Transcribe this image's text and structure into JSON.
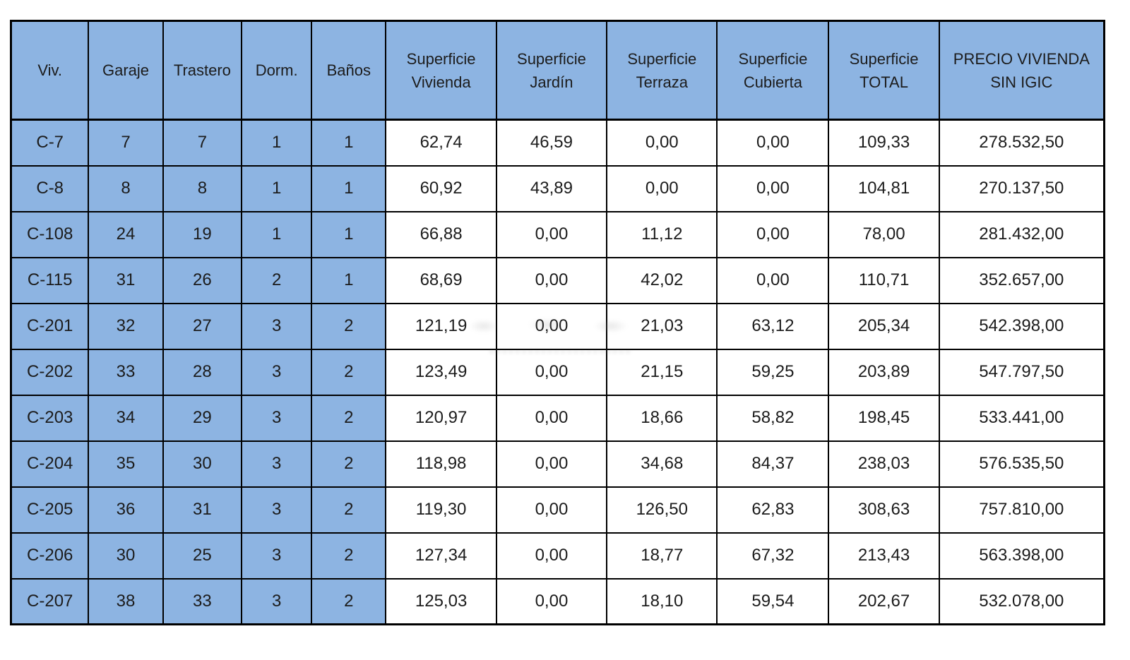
{
  "chart_data": {
    "type": "table",
    "title": "",
    "columns": [
      "Viv.",
      "Garaje",
      "Trastero",
      "Dorm.",
      "Baños",
      "Superficie Vivienda",
      "Superficie Jardín",
      "Superficie Terraza",
      "Superficie Cubierta",
      "Superficie TOTAL",
      "PRECIO VIVIENDA SIN IGIC"
    ],
    "column_widths_pct": [
      7.1,
      6.8,
      7.2,
      6.4,
      6.8,
      10.1,
      10.1,
      10.1,
      10.2,
      10.1,
      15.1
    ],
    "blue_label_columns": 5,
    "rows": [
      [
        "C-7",
        "7",
        "7",
        "1",
        "1",
        "62,74",
        "46,59",
        "0,00",
        "0,00",
        "109,33",
        "278.532,50"
      ],
      [
        "C-8",
        "8",
        "8",
        "1",
        "1",
        "60,92",
        "43,89",
        "0,00",
        "0,00",
        "104,81",
        "270.137,50"
      ],
      [
        "C-108",
        "24",
        "19",
        "1",
        "1",
        "66,88",
        "0,00",
        "11,12",
        "0,00",
        "78,00",
        "281.432,00"
      ],
      [
        "C-115",
        "31",
        "26",
        "2",
        "1",
        "68,69",
        "0,00",
        "42,02",
        "0,00",
        "110,71",
        "352.657,00"
      ],
      [
        "C-201",
        "32",
        "27",
        "3",
        "2",
        "121,19",
        "0,00",
        "21,03",
        "63,12",
        "205,34",
        "542.398,00"
      ],
      [
        "C-202",
        "33",
        "28",
        "3",
        "2",
        "123,49",
        "0,00",
        "21,15",
        "59,25",
        "203,89",
        "547.797,50"
      ],
      [
        "C-203",
        "34",
        "29",
        "3",
        "2",
        "120,97",
        "0,00",
        "18,66",
        "58,82",
        "198,45",
        "533.441,00"
      ],
      [
        "C-204",
        "35",
        "30",
        "3",
        "2",
        "118,98",
        "0,00",
        "34,68",
        "84,37",
        "238,03",
        "576.535,50"
      ],
      [
        "C-205",
        "36",
        "31",
        "3",
        "2",
        "119,30",
        "0,00",
        "126,50",
        "62,83",
        "308,63",
        "757.810,00"
      ],
      [
        "C-206",
        "30",
        "25",
        "3",
        "2",
        "127,34",
        "0,00",
        "18,77",
        "67,32",
        "213,43",
        "563.398,00"
      ],
      [
        "C-207",
        "38",
        "33",
        "3",
        "2",
        "125,03",
        "0,00",
        "18,10",
        "59,54",
        "202,67",
        "532.078,00"
      ]
    ],
    "colors": {
      "header_bg": "#8DB4E2",
      "label_cell_bg": "#8DB4E2",
      "data_cell_bg": "#FFFFFF",
      "border": "#000000",
      "text": "#1C1C1C"
    },
    "layout": {
      "grid": "on",
      "header_rows": 1,
      "body_rows": 11
    }
  }
}
